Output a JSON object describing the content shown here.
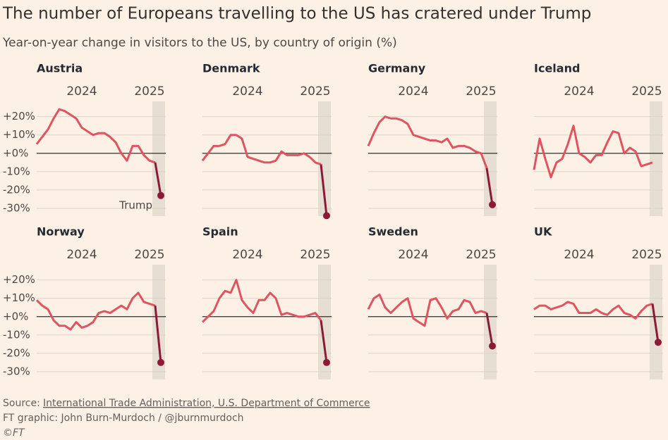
{
  "title": "The number of Europeans travelling to the US has cratered under Trump",
  "subtitle": "Year-on-year change in visitors to the US, by country of origin (%)",
  "source_label": "Source:",
  "source": "International Trade Administration, U.S. Department of Commerce",
  "credit": "FT graphic: John Burn-Murdoch / @jburnmurdoch",
  "copyright": "©FT",
  "chart_data": [
    {
      "type": "line",
      "title": "Austria",
      "annotation": "Trump",
      "categories": [
        null,
        null,
        null,
        null,
        null,
        null,
        null,
        null,
        "2024",
        null,
        null,
        null,
        null,
        null,
        null,
        null,
        null,
        null,
        null,
        null,
        "2025",
        null,
        null
      ],
      "series": [
        {
          "color": "#e0545f",
          "values": [
            5,
            9,
            13,
            19,
            24,
            23,
            21,
            19,
            14,
            12,
            10,
            11,
            11,
            9,
            6,
            0,
            -4,
            4,
            4,
            -1,
            -4,
            -5,
            null
          ]
        },
        {
          "color": "#8b1a36",
          "values": [
            null,
            null,
            null,
            null,
            null,
            null,
            null,
            null,
            null,
            null,
            null,
            null,
            null,
            null,
            null,
            null,
            null,
            null,
            null,
            null,
            null,
            -5,
            -23
          ]
        }
      ],
      "ylim": [
        -35,
        26
      ],
      "yticks": [
        {
          "value": 20,
          "label": "+20%"
        },
        {
          "value": 10,
          "label": "+10%"
        },
        {
          "value": 0,
          "label": "+0%"
        },
        {
          "value": -10,
          "label": "-10%"
        },
        {
          "value": -20,
          "label": "-20%"
        },
        {
          "value": -30,
          "label": "-30%"
        }
      ]
    },
    {
      "type": "line",
      "title": "Denmark",
      "categories": [
        null,
        null,
        null,
        null,
        null,
        null,
        null,
        null,
        "2024",
        null,
        null,
        null,
        null,
        null,
        null,
        null,
        null,
        null,
        null,
        null,
        "2025",
        null,
        null
      ],
      "series": [
        {
          "color": "#e0545f",
          "values": [
            -4,
            0,
            4,
            4,
            5,
            10,
            10,
            8,
            -2,
            -3,
            -4,
            -5,
            -5,
            -4,
            1,
            -1,
            -1,
            -1,
            0,
            -2,
            -5,
            -6,
            null
          ]
        },
        {
          "color": "#8b1a36",
          "values": [
            null,
            null,
            null,
            null,
            null,
            null,
            null,
            null,
            null,
            null,
            null,
            null,
            null,
            null,
            null,
            null,
            null,
            null,
            null,
            null,
            null,
            -6,
            -34
          ]
        }
      ],
      "ylim": [
        -35,
        26
      ],
      "yticks": [
        20,
        10,
        0,
        -10,
        -20,
        -30
      ]
    },
    {
      "type": "line",
      "title": "Germany",
      "categories": [
        null,
        null,
        null,
        null,
        null,
        null,
        null,
        null,
        "2024",
        null,
        null,
        null,
        null,
        null,
        null,
        null,
        null,
        null,
        null,
        null,
        "2025",
        null,
        null
      ],
      "series": [
        {
          "color": "#e0545f",
          "values": [
            4,
            11,
            17,
            20,
            19,
            19,
            18,
            16,
            10,
            9,
            8,
            7,
            7,
            6,
            8,
            3,
            4,
            4,
            3,
            1,
            0,
            -8,
            null
          ]
        },
        {
          "color": "#8b1a36",
          "values": [
            null,
            null,
            null,
            null,
            null,
            null,
            null,
            null,
            null,
            null,
            null,
            null,
            null,
            null,
            null,
            null,
            null,
            null,
            null,
            null,
            null,
            -8,
            -28
          ]
        }
      ],
      "ylim": [
        -35,
        26
      ],
      "yticks": [
        20,
        10,
        0,
        -10,
        -20,
        -30
      ]
    },
    {
      "type": "line",
      "title": "Iceland",
      "categories": [
        null,
        null,
        null,
        null,
        null,
        null,
        null,
        null,
        "2024",
        null,
        null,
        null,
        null,
        null,
        null,
        null,
        null,
        null,
        null,
        null,
        "2025",
        null,
        null
      ],
      "series": [
        {
          "color": "#e0545f",
          "values": [
            -9,
            8,
            -3,
            -13,
            -5,
            -3,
            5,
            15,
            0,
            -2,
            -5,
            -1,
            -1,
            6,
            12,
            11,
            0,
            3,
            1,
            -7,
            -6,
            -5,
            null
          ]
        }
      ],
      "ylim": [
        -35,
        26
      ],
      "yticks": [
        20,
        10,
        0,
        -10,
        -20,
        -30
      ]
    },
    {
      "type": "line",
      "title": "Norway",
      "categories": [
        null,
        null,
        null,
        null,
        null,
        null,
        null,
        null,
        "2024",
        null,
        null,
        null,
        null,
        null,
        null,
        null,
        null,
        null,
        null,
        null,
        "2025",
        null,
        null
      ],
      "series": [
        {
          "color": "#e0545f",
          "values": [
            9,
            6,
            4,
            -2,
            -5,
            -5,
            -7,
            -3,
            -6,
            -5,
            -3,
            2,
            3,
            2,
            4,
            6,
            4,
            10,
            13,
            8,
            7,
            6,
            null
          ]
        },
        {
          "color": "#8b1a36",
          "values": [
            null,
            null,
            null,
            null,
            null,
            null,
            null,
            null,
            null,
            null,
            null,
            null,
            null,
            null,
            null,
            null,
            null,
            null,
            null,
            null,
            null,
            6,
            -25
          ]
        }
      ],
      "ylim": [
        -35,
        26
      ],
      "yticks": [
        {
          "value": 20,
          "label": "+20%"
        },
        {
          "value": 10,
          "label": "+10%"
        },
        {
          "value": 0,
          "label": "+0%"
        },
        {
          "value": -10,
          "label": "-10%"
        },
        {
          "value": -20,
          "label": "-20%"
        },
        {
          "value": -30,
          "label": "-30%"
        }
      ]
    },
    {
      "type": "line",
      "title": "Spain",
      "categories": [
        null,
        null,
        null,
        null,
        null,
        null,
        null,
        null,
        "2024",
        null,
        null,
        null,
        null,
        null,
        null,
        null,
        null,
        null,
        null,
        null,
        "2025",
        null,
        null
      ],
      "series": [
        {
          "color": "#e0545f",
          "values": [
            -3,
            0,
            3,
            10,
            14,
            13,
            20,
            9,
            5,
            2,
            9,
            9,
            13,
            10,
            1,
            2,
            1,
            0,
            0,
            1,
            2,
            -2,
            null
          ]
        },
        {
          "color": "#8b1a36",
          "values": [
            null,
            null,
            null,
            null,
            null,
            null,
            null,
            null,
            null,
            null,
            null,
            null,
            null,
            null,
            null,
            null,
            null,
            null,
            null,
            null,
            null,
            -2,
            -25
          ]
        }
      ],
      "ylim": [
        -35,
        26
      ],
      "yticks": [
        20,
        10,
        0,
        -10,
        -20,
        -30
      ]
    },
    {
      "type": "line",
      "title": "Sweden",
      "categories": [
        null,
        null,
        null,
        null,
        null,
        null,
        null,
        null,
        "2024",
        null,
        null,
        null,
        null,
        null,
        null,
        null,
        null,
        null,
        null,
        null,
        "2025",
        null,
        null
      ],
      "series": [
        {
          "color": "#e0545f",
          "values": [
            4,
            10,
            12,
            5,
            2,
            5,
            8,
            10,
            -1,
            -3,
            -5,
            9,
            10,
            5,
            -1,
            3,
            4,
            9,
            8,
            2,
            3,
            2,
            null
          ]
        },
        {
          "color": "#8b1a36",
          "values": [
            null,
            null,
            null,
            null,
            null,
            null,
            null,
            null,
            null,
            null,
            null,
            null,
            null,
            null,
            null,
            null,
            null,
            null,
            null,
            null,
            null,
            2,
            -16
          ]
        }
      ],
      "ylim": [
        -35,
        26
      ],
      "yticks": [
        20,
        10,
        0,
        -10,
        -20,
        -30
      ]
    },
    {
      "type": "line",
      "title": "UK",
      "categories": [
        null,
        null,
        null,
        null,
        null,
        null,
        null,
        null,
        "2024",
        null,
        null,
        null,
        null,
        null,
        null,
        null,
        null,
        null,
        null,
        null,
        "2025",
        null,
        null
      ],
      "series": [
        {
          "color": "#e0545f",
          "values": [
            4,
            6,
            6,
            4,
            5,
            6,
            8,
            7,
            2,
            2,
            2,
            4,
            2,
            1,
            4,
            6,
            2,
            1,
            -1,
            3,
            6,
            7,
            null
          ]
        },
        {
          "color": "#8b1a36",
          "values": [
            null,
            null,
            null,
            null,
            null,
            null,
            null,
            null,
            null,
            null,
            null,
            null,
            null,
            null,
            null,
            null,
            null,
            null,
            null,
            null,
            null,
            7,
            -14
          ]
        }
      ],
      "ylim": [
        -35,
        26
      ],
      "yticks": [
        20,
        10,
        0,
        -10,
        -20,
        -30
      ]
    }
  ]
}
